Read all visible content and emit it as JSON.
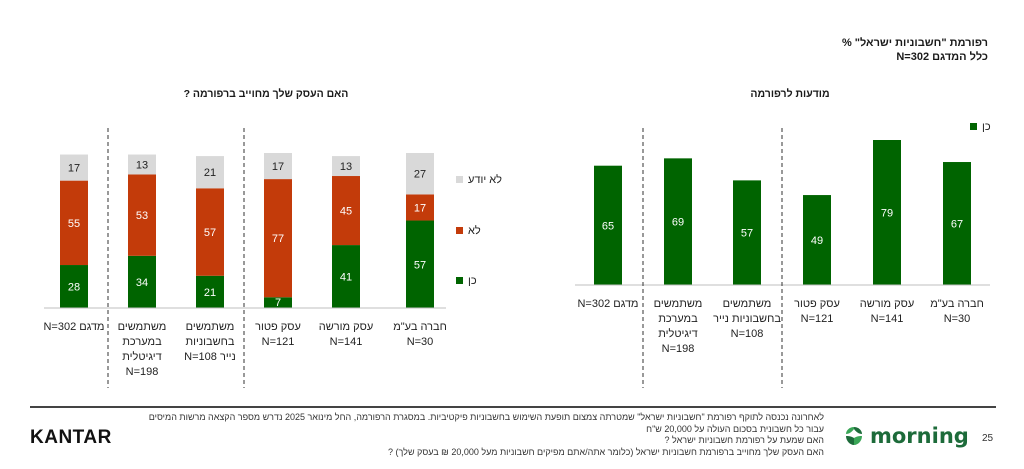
{
  "header": {
    "title_line1": "רפורמת \"חשבוניות ישראל\" %",
    "title_line2": "כלל המדגם N=302"
  },
  "chart_data": [
    {
      "type": "bar",
      "stacked": true,
      "title": "האם העסק שלך מחוייב ברפורמה ?",
      "categories": [
        [
          "חברה בע\"מ",
          "N=30"
        ],
        [
          "עסק מורשה",
          "N=141"
        ],
        [
          "עסק פטור",
          "N=121"
        ],
        [
          "משתמשים",
          "בחשבוניות",
          "נייר N=108"
        ],
        [
          "משתמשים",
          "במערכת",
          "דיגיטלית",
          "N=198"
        ],
        [
          "מדגם N=302"
        ]
      ],
      "series": [
        {
          "name": "כן",
          "color": "#006400",
          "values": [
            57,
            41,
            7,
            21,
            34,
            28
          ]
        },
        {
          "name": "לא",
          "color": "#c33b0a",
          "values": [
            17,
            45,
            77,
            57,
            53,
            55
          ]
        },
        {
          "name": "לא יודע",
          "color": "#d9d9d9",
          "values": [
            27,
            13,
            17,
            21,
            13,
            17
          ]
        }
      ],
      "legend_position": "right",
      "ylim": [
        0,
        100
      ],
      "grid": false
    },
    {
      "type": "bar",
      "title": "מודעות לרפורמה",
      "categories": [
        [
          "חברה בע\"מ",
          "N=30"
        ],
        [
          "עסק מורשה",
          "N=141"
        ],
        [
          "עסק פטור",
          "N=121"
        ],
        [
          "משתמשים",
          "בחשבוניות נייר",
          "N=108"
        ],
        [
          "משתמשים",
          "במערכת",
          "דיגיטלית",
          "N=198"
        ],
        [
          "מדגם N=302"
        ]
      ],
      "series": [
        {
          "name": "כן",
          "color": "#006400",
          "values": [
            67,
            79,
            49,
            57,
            69,
            65
          ]
        }
      ],
      "legend_position": "top-right",
      "ylim": [
        0,
        100
      ],
      "grid": false
    }
  ],
  "footnotes": [
    "לאחרונה נכנסה לתוקף רפורמת \"חשבוניות ישראל\" שמטרתה צמצום תופעת השימוש בחשבוניות פיקטיביות. במסגרת הרפורמה, החל מינואר 2025 נדרש מספר הקצאה מרשות המיסים",
    "עבור כל חשבונית בסכום העולה על 20,000 ש\"ח",
    "האם שמעת על רפורמת חשבוניות ישראל ?",
    "האם העסק שלך מחוייב ברפורמת חשבוניות ישראל (כלומר אתה/אתם מפיקים חשבוניות מעל 20,000 ₪ בעסק שלך) ?"
  ],
  "logos": {
    "kantar": "KANTAR",
    "morning": "morning"
  },
  "page_number": "25"
}
